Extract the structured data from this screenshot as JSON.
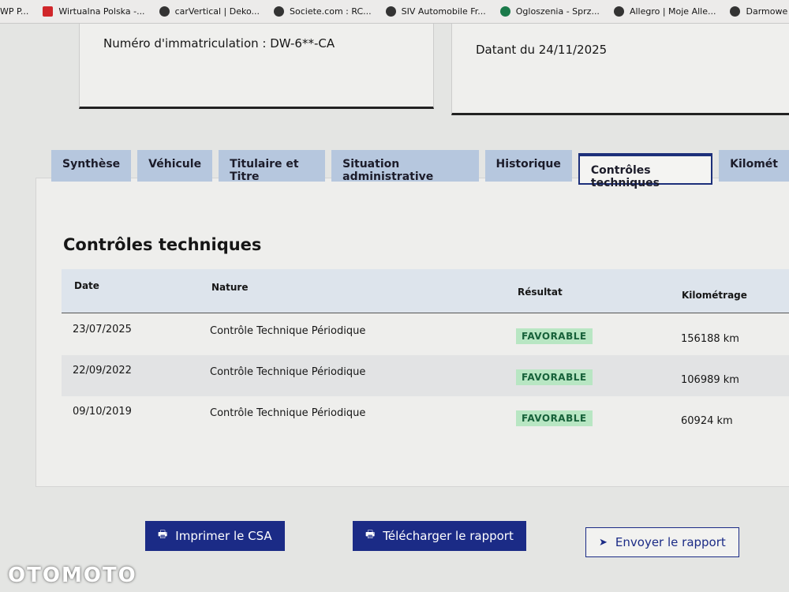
{
  "bookmarks": [
    "WP P...",
    "Wirtualna Polska -...",
    "carVertical | Deko...",
    "Societe.com : RC...",
    "SIV Automobile Fr...",
    "Ogloszenia - Sprz...",
    "Allegro | Moje Alle...",
    "Darmowe Sprawd..."
  ],
  "cards": {
    "left_text": "Numéro d'immatriculation : DW-6**-CA",
    "right_text": "Datant du 24/11/2025"
  },
  "tabs": [
    "Synthèse",
    "Véhicule",
    "Titulaire et Titre",
    "Situation administrative",
    "Historique",
    "Contrôles techniques",
    "Kilomét"
  ],
  "active_tab": "Contrôles techniques",
  "section_title": "Contrôles techniques",
  "table": {
    "headers": [
      "Date",
      "Nature",
      "Résultat",
      "Kilométrage"
    ],
    "rows": [
      {
        "date": "23/07/2025",
        "nature": "Contrôle Technique Périodique",
        "result": "FAVORABLE",
        "km": "156188 km"
      },
      {
        "date": "22/09/2022",
        "nature": "Contrôle Technique Périodique",
        "result": "FAVORABLE",
        "km": "106989 km"
      },
      {
        "date": "09/10/2019",
        "nature": "Contrôle Technique Périodique",
        "result": "FAVORABLE",
        "km": "60924 km"
      }
    ]
  },
  "buttons": {
    "print": "Imprimer le CSA",
    "download": "Télécharger le rapport",
    "send": "Envoyer le rapport"
  },
  "watermark": "OTOMOTO",
  "colors": {
    "primary": "#1b2b86",
    "badge_bg": "#b8e6c3",
    "tab_bg": "#b6c7de"
  }
}
